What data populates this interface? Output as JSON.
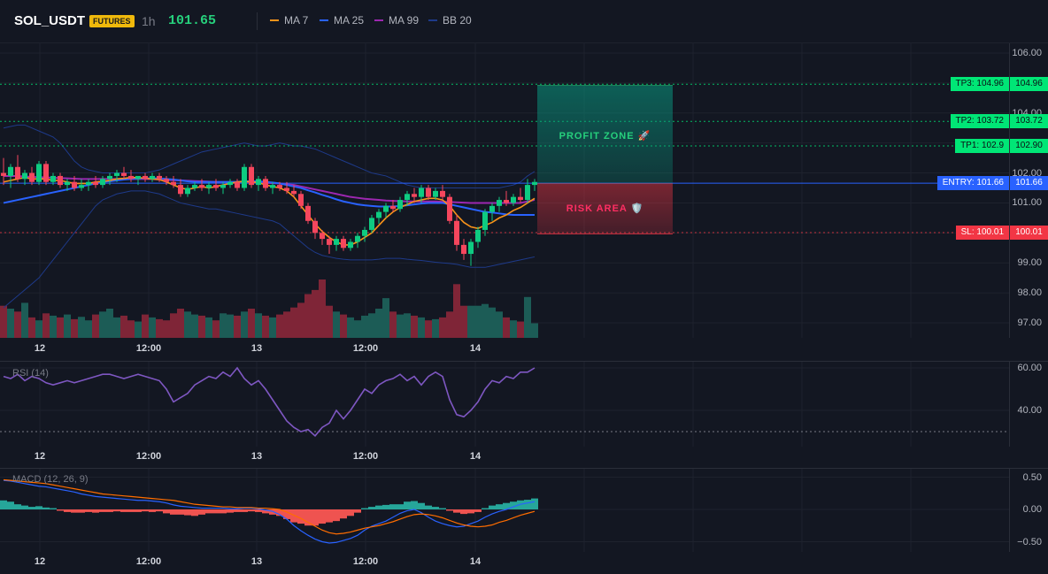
{
  "header": {
    "symbol": "SOL_USDT",
    "badge": "FUTURES",
    "timeframe": "1h",
    "price": "101.65",
    "legend": [
      {
        "label": "MA 7",
        "color": "#f7931a"
      },
      {
        "label": "MA 25",
        "color": "#2962ff"
      },
      {
        "label": "MA 99",
        "color": "#9c27b0"
      },
      {
        "label": "BB 20",
        "color": "#1e3a8a"
      }
    ]
  },
  "price_axis": [
    "106.00",
    "105.00",
    "104.00",
    "103.00",
    "102.00",
    "101.00",
    "100.00",
    "99.00",
    "98.00",
    "97.00"
  ],
  "rsi_axis": [
    "60.00",
    "40.00"
  ],
  "macd_axis": [
    "0.50",
    "0.00",
    "−0.50"
  ],
  "time_labels": [
    "12",
    "12:00",
    "13",
    "12:00",
    "14"
  ],
  "rsi_title": "RSI (14)",
  "macd_title": "MACD (12, 26, 9)",
  "zones": {
    "profit_label": "PROFIT ZONE 🚀",
    "risk_label": "RISK AREA 🛡️"
  },
  "levels": [
    {
      "tag": "TP3: 104.96",
      "axis": "104.96",
      "price": 104.96,
      "color": "#00e676",
      "kind": "tp"
    },
    {
      "tag": "TP2: 103.72",
      "axis": "103.72",
      "price": 103.72,
      "color": "#00e676",
      "kind": "tp"
    },
    {
      "tag": "TP1: 102.9",
      "axis": "102.90",
      "price": 102.9,
      "color": "#00e676",
      "kind": "tp"
    },
    {
      "tag": "ENTRY: 101.66",
      "axis": "101.66",
      "price": 101.66,
      "color": "#2962ff",
      "kind": "entry"
    },
    {
      "tag": "SL: 100.01",
      "axis": "100.01",
      "price": 100.01,
      "color": "#f23645",
      "kind": "sl"
    }
  ],
  "chart_data": {
    "type": "candlestick",
    "price_range": [
      96.5,
      106.5
    ],
    "candles": [
      [
        102.0,
        102.5,
        101.6,
        101.9
      ],
      [
        101.9,
        102.3,
        101.5,
        102.2
      ],
      [
        102.2,
        102.6,
        101.7,
        101.8
      ],
      [
        101.8,
        102.1,
        101.6,
        102.0
      ],
      [
        102.0,
        102.2,
        101.6,
        101.7
      ],
      [
        101.7,
        102.4,
        101.6,
        102.3
      ],
      [
        102.3,
        102.4,
        101.6,
        101.7
      ],
      [
        101.7,
        102.0,
        101.6,
        101.9
      ],
      [
        101.9,
        102.0,
        101.5,
        101.6
      ],
      [
        101.6,
        101.8,
        101.4,
        101.7
      ],
      [
        101.7,
        101.9,
        101.4,
        101.5
      ],
      [
        101.5,
        101.8,
        101.4,
        101.6
      ],
      [
        101.6,
        101.8,
        101.4,
        101.7
      ],
      [
        101.7,
        101.9,
        101.5,
        101.6
      ],
      [
        101.6,
        101.9,
        101.5,
        101.8
      ],
      [
        101.8,
        102.0,
        101.6,
        101.9
      ],
      [
        101.9,
        102.1,
        101.7,
        102.0
      ],
      [
        102.0,
        102.2,
        101.8,
        101.9
      ],
      [
        101.9,
        102.1,
        101.7,
        101.8
      ],
      [
        101.8,
        101.9,
        101.6,
        101.9
      ],
      [
        101.9,
        102.0,
        101.7,
        101.8
      ],
      [
        101.8,
        102.0,
        101.7,
        101.9
      ],
      [
        101.9,
        102.0,
        101.7,
        101.8
      ],
      [
        101.8,
        101.9,
        101.6,
        101.7
      ],
      [
        101.7,
        101.9,
        101.5,
        101.6
      ],
      [
        101.6,
        101.8,
        101.2,
        101.3
      ],
      [
        101.3,
        101.6,
        101.2,
        101.5
      ],
      [
        101.5,
        101.7,
        101.4,
        101.6
      ],
      [
        101.6,
        101.8,
        101.4,
        101.5
      ],
      [
        101.5,
        101.7,
        101.3,
        101.6
      ],
      [
        101.6,
        101.8,
        101.4,
        101.5
      ],
      [
        101.5,
        101.7,
        101.3,
        101.6
      ],
      [
        101.6,
        101.8,
        101.5,
        101.7
      ],
      [
        101.7,
        101.8,
        101.4,
        101.5
      ],
      [
        101.5,
        102.3,
        101.4,
        102.2
      ],
      [
        102.2,
        102.3,
        101.5,
        101.6
      ],
      [
        101.6,
        101.9,
        101.4,
        101.8
      ],
      [
        101.8,
        101.9,
        101.4,
        101.5
      ],
      [
        101.5,
        101.7,
        101.3,
        101.6
      ],
      [
        101.6,
        101.7,
        101.4,
        101.5
      ],
      [
        101.5,
        101.7,
        101.3,
        101.4
      ],
      [
        101.4,
        101.6,
        101.2,
        101.3
      ],
      [
        101.3,
        101.4,
        100.8,
        100.9
      ],
      [
        100.9,
        101.0,
        100.3,
        100.4
      ],
      [
        100.4,
        100.5,
        99.8,
        100.0
      ],
      [
        100.0,
        100.1,
        99.6,
        99.8
      ],
      [
        99.8,
        99.9,
        99.3,
        99.6
      ],
      [
        99.6,
        99.9,
        99.4,
        99.8
      ],
      [
        99.8,
        99.9,
        99.4,
        99.5
      ],
      [
        99.5,
        99.8,
        99.4,
        99.7
      ],
      [
        99.7,
        100.0,
        99.5,
        99.9
      ],
      [
        99.9,
        100.2,
        99.7,
        100.1
      ],
      [
        100.1,
        100.6,
        100.0,
        100.5
      ],
      [
        100.5,
        100.8,
        100.3,
        100.7
      ],
      [
        100.7,
        101.0,
        100.5,
        100.9
      ],
      [
        100.9,
        101.1,
        100.7,
        100.8
      ],
      [
        100.8,
        101.2,
        100.7,
        101.1
      ],
      [
        101.1,
        101.4,
        100.9,
        101.3
      ],
      [
        101.3,
        101.5,
        101.0,
        101.2
      ],
      [
        101.2,
        101.6,
        101.0,
        101.5
      ],
      [
        101.5,
        101.6,
        101.1,
        101.2
      ],
      [
        101.2,
        101.5,
        101.1,
        101.4
      ],
      [
        101.4,
        101.6,
        101.1,
        101.2
      ],
      [
        101.2,
        101.3,
        100.3,
        100.4
      ],
      [
        100.4,
        100.6,
        99.4,
        99.6
      ],
      [
        99.6,
        99.8,
        99.1,
        99.3
      ],
      [
        99.3,
        99.8,
        98.9,
        99.7
      ],
      [
        99.7,
        100.2,
        99.5,
        100.1
      ],
      [
        100.1,
        100.8,
        99.9,
        100.7
      ],
      [
        100.7,
        101.0,
        100.4,
        100.9
      ],
      [
        100.9,
        101.2,
        100.7,
        101.1
      ],
      [
        101.1,
        101.4,
        100.9,
        101.0
      ],
      [
        101.0,
        101.3,
        100.9,
        101.2
      ],
      [
        101.2,
        101.5,
        101.0,
        101.1
      ],
      [
        101.1,
        101.8,
        101.0,
        101.6
      ],
      [
        101.6,
        101.8,
        101.4,
        101.7
      ]
    ],
    "volume": [
      0.55,
      0.5,
      0.45,
      0.6,
      0.35,
      0.3,
      0.42,
      0.38,
      0.35,
      0.4,
      0.32,
      0.36,
      0.3,
      0.4,
      0.45,
      0.5,
      0.35,
      0.38,
      0.3,
      0.28,
      0.4,
      0.35,
      0.32,
      0.3,
      0.42,
      0.5,
      0.45,
      0.4,
      0.38,
      0.35,
      0.3,
      0.42,
      0.4,
      0.38,
      0.45,
      0.5,
      0.42,
      0.38,
      0.35,
      0.4,
      0.45,
      0.52,
      0.6,
      0.75,
      0.82,
      1.0,
      0.55,
      0.45,
      0.4,
      0.35,
      0.3,
      0.38,
      0.42,
      0.5,
      0.68,
      0.45,
      0.4,
      0.42,
      0.38,
      0.35,
      0.3,
      0.32,
      0.35,
      0.45,
      0.92,
      0.55,
      0.55,
      0.55,
      0.58,
      0.52,
      0.45,
      0.35,
      0.3,
      0.28,
      0.7,
      0.25
    ],
    "rsi": [
      56,
      55,
      57,
      54,
      56,
      55,
      53,
      52,
      53,
      54,
      53,
      54,
      55,
      56,
      57,
      57,
      56,
      55,
      56,
      57,
      56,
      55,
      54,
      50,
      44,
      46,
      48,
      52,
      54,
      56,
      55,
      58,
      56,
      60,
      55,
      52,
      54,
      50,
      45,
      40,
      35,
      32,
      30,
      31,
      28,
      32,
      34,
      40,
      36,
      40,
      45,
      50,
      48,
      52,
      54,
      55,
      57,
      54,
      56,
      52,
      56,
      58,
      56,
      45,
      38,
      37,
      40,
      44,
      50,
      54,
      53,
      56,
      55,
      58,
      58,
      60
    ],
    "ma7": [
      101.7,
      101.75,
      101.8,
      101.85,
      101.8,
      101.8,
      101.8,
      101.75,
      101.75,
      101.7,
      101.65,
      101.65,
      101.65,
      101.7,
      101.72,
      101.75,
      101.8,
      101.82,
      101.85,
      101.85,
      101.82,
      101.8,
      101.78,
      101.7,
      101.6,
      101.5,
      101.45,
      101.5,
      101.55,
      101.5,
      101.55,
      101.6,
      101.65,
      101.7,
      101.72,
      101.7,
      101.68,
      101.6,
      101.55,
      101.5,
      101.4,
      101.2,
      100.9,
      100.6,
      100.3,
      100.05,
      99.85,
      99.7,
      99.6,
      99.6,
      99.7,
      99.85,
      100.0,
      100.25,
      100.5,
      100.7,
      100.85,
      100.95,
      101.05,
      101.1,
      101.15,
      101.15,
      101.1,
      100.9,
      100.6,
      100.35,
      100.2,
      100.15,
      100.25,
      100.35,
      100.5,
      100.6,
      100.75,
      100.85,
      101.0,
      101.15
    ],
    "ma25": [
      101.0,
      101.05,
      101.1,
      101.15,
      101.2,
      101.25,
      101.3,
      101.35,
      101.4,
      101.45,
      101.5,
      101.55,
      101.6,
      101.65,
      101.7,
      101.72,
      101.75,
      101.78,
      101.8,
      101.82,
      101.82,
      101.82,
      101.82,
      101.8,
      101.78,
      101.75,
      101.72,
      101.7,
      101.7,
      101.7,
      101.7,
      101.7,
      101.7,
      101.7,
      101.72,
      101.72,
      101.72,
      101.7,
      101.68,
      101.65,
      101.6,
      101.55,
      101.5,
      101.42,
      101.35,
      101.27,
      101.2,
      101.12,
      101.05,
      101.0,
      100.95,
      100.92,
      100.9,
      100.88,
      100.88,
      100.88,
      100.9,
      100.92,
      100.95,
      100.98,
      101.0,
      101.0,
      101.0,
      100.95,
      100.9,
      100.85,
      100.8,
      100.75,
      100.7,
      100.68,
      100.65,
      100.62,
      100.6,
      100.6,
      100.6,
      100.6
    ],
    "ma99": [
      101.9,
      101.9,
      101.9,
      101.88,
      101.87,
      101.86,
      101.85,
      101.84,
      101.83,
      101.82,
      101.81,
      101.8,
      101.8,
      101.8,
      101.8,
      101.8,
      101.8,
      101.8,
      101.8,
      101.8,
      101.8,
      101.8,
      101.78,
      101.77,
      101.76,
      101.75,
      101.74,
      101.73,
      101.72,
      101.71,
      101.7,
      101.7,
      101.7,
      101.7,
      101.7,
      101.69,
      101.68,
      101.67,
      101.66,
      101.65,
      101.62,
      101.6,
      101.55,
      101.5,
      101.45,
      101.4,
      101.35,
      101.3,
      101.25,
      101.2,
      101.17,
      101.14,
      101.12,
      101.1,
      101.08,
      101.07,
      101.06,
      101.05,
      101.05,
      101.05,
      101.05,
      101.05,
      101.04,
      101.03,
      101.02,
      101.01,
      101.0,
      101.0,
      101.0,
      101.0,
      101.0,
      101.0,
      101.0,
      101.0,
      101.05,
      101.1
    ],
    "bb_upper": [
      103.5,
      103.55,
      103.6,
      103.6,
      103.5,
      103.4,
      103.3,
      103.2,
      103.0,
      102.7,
      102.4,
      102.2,
      102.1,
      102.05,
      102.0,
      102.0,
      102.0,
      102.0,
      102.0,
      102.0,
      102.0,
      102.05,
      102.1,
      102.2,
      102.3,
      102.4,
      102.5,
      102.6,
      102.7,
      102.75,
      102.8,
      102.85,
      102.9,
      102.95,
      103.0,
      102.95,
      102.9,
      102.9,
      102.95,
      103.0,
      102.95,
      102.9,
      102.9,
      102.85,
      102.8,
      102.7,
      102.6,
      102.5,
      102.4,
      102.3,
      102.2,
      102.1,
      102.0,
      101.95,
      101.9,
      101.8,
      101.7,
      101.6,
      101.55,
      101.5,
      101.5,
      101.5,
      101.5,
      101.5,
      101.5,
      101.5,
      101.5,
      101.5,
      101.5,
      101.5,
      101.5,
      101.55,
      101.6,
      101.7,
      101.9,
      102.05
    ],
    "bb_lower": [
      97.5,
      97.7,
      97.9,
      98.1,
      98.3,
      98.5,
      98.8,
      99.1,
      99.4,
      99.7,
      100.0,
      100.3,
      100.6,
      100.9,
      101.1,
      101.2,
      101.3,
      101.35,
      101.4,
      101.4,
      101.4,
      101.35,
      101.3,
      101.2,
      101.1,
      101.0,
      100.95,
      100.9,
      100.85,
      100.8,
      100.8,
      100.75,
      100.7,
      100.65,
      100.6,
      100.55,
      100.5,
      100.45,
      100.4,
      100.3,
      100.1,
      99.9,
      99.7,
      99.5,
      99.35,
      99.25,
      99.2,
      99.15,
      99.12,
      99.1,
      99.1,
      99.1,
      99.1,
      99.12,
      99.15,
      99.15,
      99.15,
      99.12,
      99.1,
      99.08,
      99.05,
      99.02,
      99.0,
      98.98,
      98.95,
      98.9,
      98.85,
      98.85,
      98.85,
      98.9,
      98.95,
      99.0,
      99.05,
      99.1,
      99.15,
      99.2
    ],
    "macd_hist": [
      0.14,
      0.12,
      0.08,
      0.06,
      0.04,
      0.05,
      0.03,
      0.02,
      -0.02,
      -0.04,
      -0.05,
      -0.05,
      -0.04,
      -0.05,
      -0.04,
      -0.04,
      -0.03,
      -0.04,
      -0.04,
      -0.04,
      -0.03,
      -0.04,
      -0.03,
      -0.06,
      -0.08,
      -0.08,
      -0.09,
      -0.1,
      -0.08,
      -0.06,
      -0.06,
      -0.06,
      -0.05,
      -0.04,
      -0.04,
      -0.03,
      -0.04,
      -0.06,
      -0.08,
      -0.1,
      -0.15,
      -0.2,
      -0.22,
      -0.25,
      -0.25,
      -0.22,
      -0.2,
      -0.18,
      -0.14,
      -0.1,
      -0.05,
      0.02,
      0.04,
      0.06,
      0.07,
      0.08,
      0.08,
      0.12,
      0.13,
      0.1,
      0.06,
      0.04,
      0.02,
      -0.02,
      -0.05,
      -0.07,
      -0.06,
      -0.04,
      0.02,
      0.06,
      0.08,
      0.1,
      0.12,
      0.14,
      0.15,
      0.17
    ],
    "macd_line": [
      0.45,
      0.44,
      0.42,
      0.4,
      0.38,
      0.36,
      0.35,
      0.33,
      0.31,
      0.29,
      0.27,
      0.24,
      0.22,
      0.2,
      0.19,
      0.18,
      0.17,
      0.16,
      0.15,
      0.14,
      0.14,
      0.13,
      0.12,
      0.1,
      0.07,
      0.05,
      0.04,
      0.03,
      0.02,
      0.02,
      0.02,
      0.02,
      0.01,
      0.01,
      0.02,
      0.02,
      0.01,
      -0.01,
      -0.03,
      -0.08,
      -0.15,
      -0.25,
      -0.33,
      -0.4,
      -0.46,
      -0.5,
      -0.52,
      -0.51,
      -0.48,
      -0.45,
      -0.4,
      -0.32,
      -0.26,
      -0.22,
      -0.18,
      -0.12,
      -0.06,
      -0.02,
      0.0,
      -0.05,
      -0.12,
      -0.18,
      -0.22,
      -0.25,
      -0.27,
      -0.26,
      -0.22,
      -0.18,
      -0.12,
      -0.07,
      -0.03,
      0.0,
      0.04,
      0.08,
      0.1,
      0.12
    ],
    "macd_signal": [
      0.46,
      0.45,
      0.44,
      0.43,
      0.42,
      0.41,
      0.4,
      0.38,
      0.36,
      0.34,
      0.32,
      0.3,
      0.28,
      0.26,
      0.24,
      0.23,
      0.22,
      0.21,
      0.2,
      0.19,
      0.18,
      0.17,
      0.16,
      0.15,
      0.14,
      0.12,
      0.1,
      0.08,
      0.07,
      0.06,
      0.05,
      0.04,
      0.04,
      0.03,
      0.03,
      0.03,
      0.02,
      0.02,
      0.01,
      0.0,
      -0.04,
      -0.09,
      -0.14,
      -0.2,
      -0.26,
      -0.32,
      -0.36,
      -0.38,
      -0.37,
      -0.35,
      -0.32,
      -0.29,
      -0.27,
      -0.25,
      -0.22,
      -0.19,
      -0.15,
      -0.11,
      -0.08,
      -0.07,
      -0.08,
      -0.1,
      -0.13,
      -0.17,
      -0.21,
      -0.24,
      -0.26,
      -0.27,
      -0.26,
      -0.24,
      -0.2,
      -0.17,
      -0.13,
      -0.09,
      -0.06,
      -0.03
    ]
  }
}
